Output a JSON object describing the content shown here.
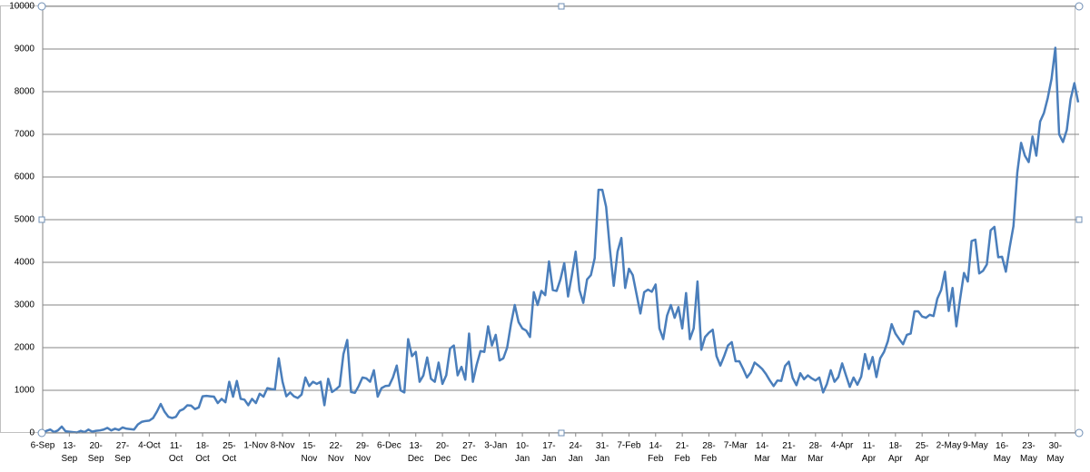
{
  "chart_data": {
    "type": "line",
    "categories": [
      "6-Sep",
      null,
      null,
      null,
      null,
      null,
      null,
      "13-Sep",
      null,
      null,
      null,
      null,
      null,
      null,
      "20-Sep",
      null,
      null,
      null,
      null,
      null,
      null,
      "27-Sep",
      null,
      null,
      null,
      null,
      null,
      null,
      "4-Oct",
      null,
      null,
      null,
      null,
      null,
      null,
      "11-Oct",
      null,
      null,
      null,
      null,
      null,
      null,
      "18-Oct",
      null,
      null,
      null,
      null,
      null,
      null,
      "25-Oct",
      null,
      null,
      null,
      null,
      null,
      null,
      "1-Nov",
      null,
      null,
      null,
      null,
      null,
      null,
      "8-Nov",
      null,
      null,
      null,
      null,
      null,
      null,
      "15-Nov",
      null,
      null,
      null,
      null,
      null,
      null,
      "22-Nov",
      null,
      null,
      null,
      null,
      null,
      null,
      "29-Nov",
      null,
      null,
      null,
      null,
      null,
      null,
      "6-Dec",
      null,
      null,
      null,
      null,
      null,
      null,
      "13-Dec",
      null,
      null,
      null,
      null,
      null,
      null,
      "20-Dec",
      null,
      null,
      null,
      null,
      null,
      null,
      "27-Dec",
      null,
      null,
      null,
      null,
      null,
      null,
      "3-Jan",
      null,
      null,
      null,
      null,
      null,
      null,
      "10-Jan",
      null,
      null,
      null,
      null,
      null,
      null,
      "17-Jan",
      null,
      null,
      null,
      null,
      null,
      null,
      "24-Jan",
      null,
      null,
      null,
      null,
      null,
      null,
      "31-Jan",
      null,
      null,
      null,
      null,
      null,
      null,
      "7-Feb",
      null,
      null,
      null,
      null,
      null,
      null,
      "14-Feb",
      null,
      null,
      null,
      null,
      null,
      null,
      "21-Feb",
      null,
      null,
      null,
      null,
      null,
      null,
      "28-Feb",
      null,
      null,
      null,
      null,
      null,
      null,
      "7-Mar",
      null,
      null,
      null,
      null,
      null,
      null,
      "14-Mar",
      null,
      null,
      null,
      null,
      null,
      null,
      "21-Mar",
      null,
      null,
      null,
      null,
      null,
      null,
      "28-Mar",
      null,
      null,
      null,
      null,
      null,
      null,
      "4-Apr",
      null,
      null,
      null,
      null,
      null,
      null,
      "11-Apr",
      null,
      null,
      null,
      null,
      null,
      null,
      "18-Apr",
      null,
      null,
      null,
      null,
      null,
      null,
      "25-Apr",
      null,
      null,
      null,
      null,
      null,
      null,
      "2-May",
      null,
      null,
      null,
      null,
      null,
      null,
      "9-May",
      null,
      null,
      null,
      null,
      null,
      null,
      "16-May",
      null,
      null,
      null,
      null,
      null,
      null,
      "23-May",
      null,
      null,
      null,
      null,
      null,
      null,
      "30-May",
      null,
      null,
      null,
      null,
      null,
      null
    ],
    "values": [
      0,
      50,
      80,
      20,
      60,
      150,
      40,
      30,
      20,
      10,
      50,
      20,
      80,
      30,
      50,
      60,
      80,
      120,
      60,
      100,
      70,
      130,
      100,
      90,
      80,
      200,
      260,
      280,
      290,
      350,
      500,
      680,
      500,
      380,
      350,
      380,
      520,
      560,
      650,
      640,
      560,
      600,
      860,
      870,
      860,
      850,
      700,
      800,
      720,
      1200,
      850,
      1220,
      800,
      780,
      650,
      800,
      700,
      920,
      850,
      1050,
      1030,
      1020,
      1750,
      1200,
      860,
      950,
      860,
      820,
      900,
      1300,
      1100,
      1200,
      1150,
      1200,
      650,
      1270,
      960,
      1020,
      1100,
      1850,
      2180,
      960,
      940,
      1100,
      1300,
      1280,
      1200,
      1470,
      850,
      1050,
      1100,
      1110,
      1300,
      1580,
      1000,
      950,
      2200,
      1800,
      1900,
      1200,
      1350,
      1770,
      1270,
      1200,
      1650,
      1150,
      1350,
      1980,
      2050,
      1350,
      1550,
      1250,
      2330,
      1200,
      1600,
      1920,
      1900,
      2500,
      2050,
      2300,
      1700,
      1750,
      2000,
      2550,
      3000,
      2600,
      2450,
      2400,
      2250,
      3300,
      3000,
      3330,
      3230,
      4020,
      3350,
      3330,
      3600,
      3980,
      3200,
      3700,
      4250,
      3350,
      3050,
      3600,
      3700,
      4100,
      5700,
      5700,
      5300,
      4300,
      3450,
      4250,
      4570,
      3400,
      3850,
      3700,
      3250,
      2800,
      3300,
      3360,
      3310,
      3480,
      2450,
      2200,
      2750,
      3000,
      2700,
      2950,
      2450,
      3280,
      2200,
      2450,
      3550,
      1950,
      2250,
      2350,
      2420,
      1800,
      1580,
      1800,
      2050,
      2130,
      1680,
      1680,
      1500,
      1300,
      1420,
      1650,
      1580,
      1500,
      1380,
      1230,
      1100,
      1230,
      1220,
      1570,
      1670,
      1290,
      1120,
      1400,
      1260,
      1350,
      1280,
      1230,
      1300,
      950,
      1150,
      1470,
      1200,
      1310,
      1630,
      1350,
      1080,
      1300,
      1130,
      1320,
      1850,
      1500,
      1780,
      1310,
      1750,
      1900,
      2150,
      2550,
      2330,
      2200,
      2080,
      2300,
      2330,
      2850,
      2850,
      2730,
      2700,
      2770,
      2740,
      3150,
      3350,
      3780,
      2860,
      3400,
      2500,
      3150,
      3750,
      3550,
      4500,
      4530,
      3740,
      3800,
      3950,
      4750,
      4830,
      4120,
      4130,
      3780,
      4350,
      4850,
      6100,
      6800,
      6500,
      6350,
      6950,
      6500,
      7300,
      7500,
      7850,
      8300,
      9030,
      7000,
      6820,
      7100,
      7820,
      8200,
      7750
    ],
    "color": "#4a7ebb",
    "ylim": [
      0,
      10000
    ],
    "yticks": [
      0,
      1000,
      2000,
      3000,
      4000,
      5000,
      6000,
      7000,
      8000,
      9000,
      10000
    ],
    "grid": true
  }
}
